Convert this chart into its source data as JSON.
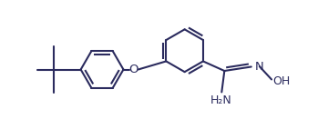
{
  "background_color": "#ffffff",
  "line_color": "#2b2b5e",
  "figsize": [
    3.6,
    1.53
  ],
  "dpi": 100,
  "bond_lw": 1.5,
  "font_size": 8.5,
  "xlim": [
    0.0,
    9.5
  ],
  "ylim": [
    0.3,
    4.3
  ]
}
